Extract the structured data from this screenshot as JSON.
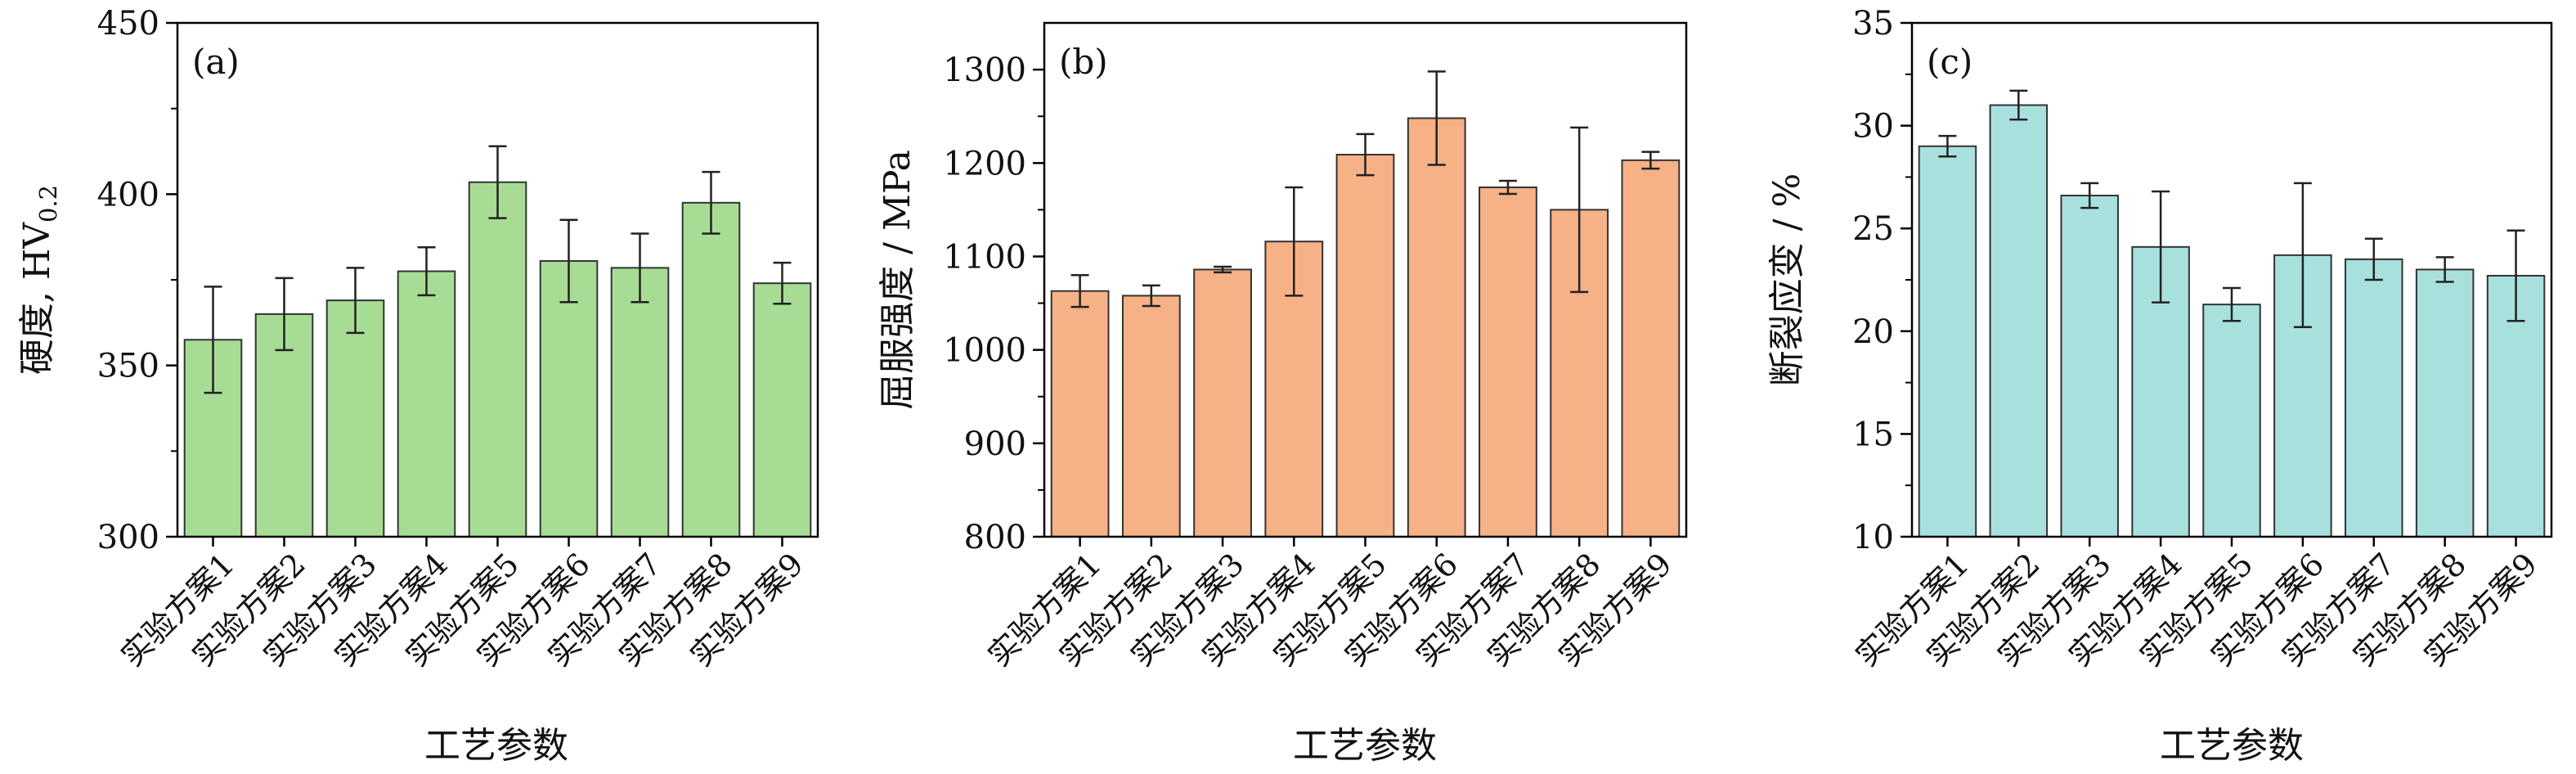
{
  "chart_data": [
    {
      "type": "bar",
      "panel_label": "(a)",
      "title": "",
      "xlabel": "工艺参数",
      "ylabel": "硬度, HV",
      "ylabel_sub": "0.2",
      "categories": [
        "实验方案1",
        "实验方案2",
        "实验方案3",
        "实验方案4",
        "实验方案5",
        "实验方案6",
        "实验方案7",
        "实验方案8",
        "实验方案9"
      ],
      "values": [
        357.5,
        365,
        369,
        377.5,
        403.5,
        380.5,
        378.5,
        397.5,
        374
      ],
      "errors": [
        15.5,
        10.5,
        9.5,
        7,
        10.5,
        12,
        10,
        9,
        6
      ],
      "ylim": [
        300,
        450
      ],
      "yticks": [
        300,
        350,
        400,
        450
      ],
      "bar_color": "#a7dc94",
      "grid": false
    },
    {
      "type": "bar",
      "panel_label": "(b)",
      "title": "",
      "xlabel": "工艺参数",
      "ylabel": "屈服强度 / MPa",
      "categories": [
        "实验方案1",
        "实验方案2",
        "实验方案3",
        "实验方案4",
        "实验方案5",
        "实验方案6",
        "实验方案7",
        "实验方案8",
        "实验方案9"
      ],
      "values": [
        1063,
        1058,
        1086,
        1116,
        1209,
        1248,
        1174,
        1150,
        1203
      ],
      "errors": [
        17,
        11,
        3,
        58,
        22,
        50,
        7,
        88,
        9
      ],
      "ylim": [
        800,
        1350
      ],
      "yticks": [
        800,
        900,
        1000,
        1100,
        1200,
        1300
      ],
      "bar_color": "#f6b187",
      "grid": false
    },
    {
      "type": "bar",
      "panel_label": "(c)",
      "title": "",
      "xlabel": "工艺参数",
      "ylabel": "断裂应变 / %",
      "categories": [
        "实验方案1",
        "实验方案2",
        "实验方案3",
        "实验方案4",
        "实验方案5",
        "实验方案6",
        "实验方案7",
        "实验方案8",
        "实验方案9"
      ],
      "values": [
        29,
        31,
        26.6,
        24.1,
        21.3,
        23.7,
        23.5,
        23,
        22.7
      ],
      "errors": [
        0.5,
        0.7,
        0.6,
        2.7,
        0.8,
        3.5,
        1,
        0.6,
        2.2
      ],
      "ylim": [
        10,
        35
      ],
      "yticks": [
        10,
        15,
        20,
        25,
        30,
        35
      ],
      "bar_color": "#a8e0de",
      "grid": false
    }
  ]
}
